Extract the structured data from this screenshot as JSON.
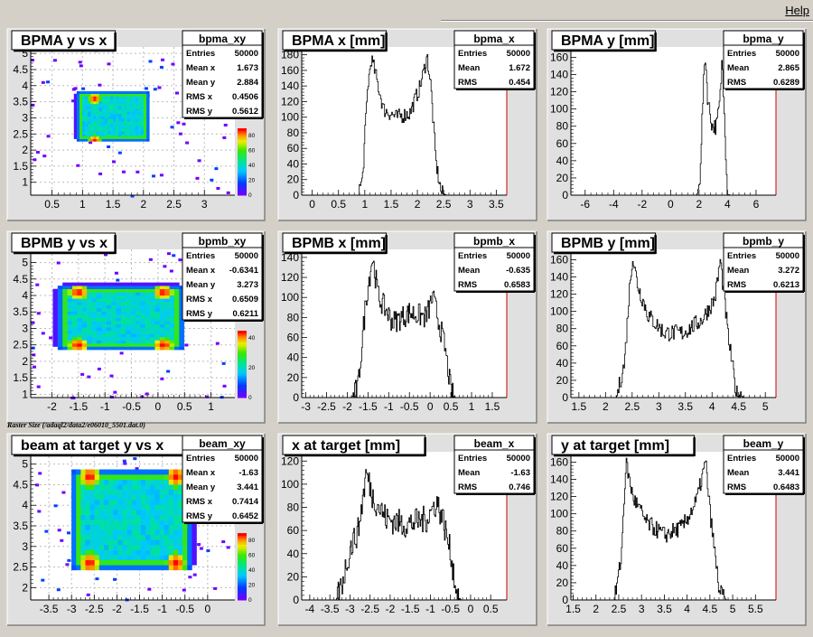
{
  "menu": {
    "help": "Help"
  },
  "caption": "Raster Size (/adaql2/data2/e06010_5501.dat.0)",
  "colors": {
    "pad_bg": "#ffffff",
    "frame_bg": "#e0e0e0",
    "axis_red": "#cc0000"
  },
  "chart_data": [
    {
      "type": "heatmap",
      "title": "BPMA y vs x",
      "stats": {
        "name": "bpma_xy",
        "rows": [
          [
            "Entries",
            "50000"
          ],
          [
            "Mean x",
            "1.673"
          ],
          [
            "Mean y",
            "2.884"
          ],
          [
            "RMS x",
            "0.4506"
          ],
          [
            "RMS y",
            "0.5612"
          ]
        ]
      },
      "xlim": [
        0.15,
        3.5
      ],
      "ylim": [
        0.6,
        5.2
      ],
      "xticks": [
        0.5,
        1,
        1.5,
        2,
        2.5,
        3
      ],
      "xticklabels": [
        "0.5",
        "1",
        "1.5",
        "2",
        "2.5",
        "3"
      ],
      "yticks": [
        1,
        1.5,
        2,
        2.5,
        3,
        3.5,
        4,
        4.5,
        5
      ],
      "yticklabels": [
        "1",
        "1.5",
        "2",
        "2.5",
        "3",
        "3.5",
        "4",
        "4.5",
        "5"
      ],
      "zticks": [
        0,
        20,
        40,
        60,
        80
      ],
      "zticklabels": [
        "0",
        "20",
        "40",
        "60",
        "80"
      ],
      "rect": [
        0.95,
        2.35,
        2.05,
        3.75
      ],
      "hot": [
        [
          1.2,
          2.3
        ],
        [
          2.2,
          2.3
        ],
        [
          1.2,
          3.6
        ],
        [
          2.2,
          3.6
        ]
      ]
    },
    {
      "type": "line",
      "title": "BPMA x [mm]",
      "stats": {
        "name": "bpma_x",
        "rows": [
          [
            "Entries",
            "50000"
          ],
          [
            "Mean",
            "1.672"
          ],
          [
            "RMS",
            "0.454"
          ]
        ]
      },
      "xlim": [
        -0.2,
        3.7
      ],
      "ylim": [
        0,
        190
      ],
      "xticks": [
        0,
        0.5,
        1,
        1.5,
        2,
        2.5,
        3,
        3.5
      ],
      "xticklabels": [
        "0",
        "0.5",
        "1",
        "1.5",
        "2",
        "2.5",
        "3",
        "3.5"
      ],
      "yticks": [
        0,
        20,
        40,
        60,
        80,
        100,
        120,
        140,
        160,
        180
      ],
      "yticklabels": [
        "0",
        "20",
        "40",
        "60",
        "80",
        "100",
        "120",
        "140",
        "160",
        "180"
      ],
      "profile": [
        [
          -0.2,
          0
        ],
        [
          0.85,
          0
        ],
        [
          0.95,
          20
        ],
        [
          1.05,
          140
        ],
        [
          1.12,
          175
        ],
        [
          1.2,
          155
        ],
        [
          1.35,
          110
        ],
        [
          1.6,
          100
        ],
        [
          1.85,
          105
        ],
        [
          2.05,
          140
        ],
        [
          2.18,
          178
        ],
        [
          2.25,
          140
        ],
        [
          2.35,
          40
        ],
        [
          2.45,
          3
        ],
        [
          2.55,
          0
        ],
        [
          3.7,
          0
        ]
      ],
      "noise": 10
    },
    {
      "type": "line",
      "title": "BPMA y [mm]",
      "stats": {
        "name": "bpma_y",
        "rows": [
          [
            "Entries",
            "50000"
          ],
          [
            "Mean",
            "2.865"
          ],
          [
            "RMS",
            "0.6289"
          ]
        ]
      },
      "xlim": [
        -7,
        7.4
      ],
      "ylim": [
        0,
        172
      ],
      "xticks": [
        -6,
        -4,
        -2,
        0,
        2,
        4,
        6
      ],
      "xticklabels": [
        "-6",
        "-4",
        "-2",
        "0",
        "2",
        "4",
        "6"
      ],
      "yticks": [
        0,
        20,
        40,
        60,
        80,
        100,
        120,
        140,
        160
      ],
      "yticklabels": [
        "0",
        "20",
        "40",
        "60",
        "80",
        "100",
        "120",
        "140",
        "160"
      ],
      "profile": [
        [
          -7,
          0
        ],
        [
          1.8,
          0
        ],
        [
          2.0,
          10
        ],
        [
          2.25,
          110
        ],
        [
          2.4,
          165
        ],
        [
          2.6,
          110
        ],
        [
          2.9,
          80
        ],
        [
          3.2,
          80
        ],
        [
          3.45,
          110
        ],
        [
          3.6,
          160
        ],
        [
          3.75,
          100
        ],
        [
          3.95,
          5
        ],
        [
          4.1,
          0
        ],
        [
          7.4,
          0
        ]
      ],
      "noise": 10
    },
    {
      "type": "heatmap",
      "title": "BPMB y vs x",
      "stats": {
        "name": "bpmb_xy",
        "rows": [
          [
            "Entries",
            "50000"
          ],
          [
            "Mean x",
            "-0.6341"
          ],
          [
            "Mean y",
            "3.273"
          ],
          [
            "RMS x",
            "0.6509"
          ],
          [
            "RMS y",
            "0.6211"
          ]
        ]
      },
      "xlim": [
        -2.4,
        1.45
      ],
      "ylim": [
        0.9,
        5.4
      ],
      "xticks": [
        -2,
        -1.5,
        -1,
        -0.5,
        0,
        0.5,
        1
      ],
      "xticklabels": [
        "-2",
        "-1.5",
        "-1",
        "-0.5",
        "0",
        "0.5",
        "1"
      ],
      "yticks": [
        1,
        1.5,
        2,
        2.5,
        3,
        3.5,
        4,
        4.5,
        5
      ],
      "yticklabels": [
        "1",
        "1.5",
        "2",
        "2.5",
        "3",
        "3.5",
        "4",
        "4.5",
        "5"
      ],
      "zticks": [
        0,
        20,
        40
      ],
      "zticklabels": [
        "0",
        "20",
        "40"
      ],
      "rect": [
        -1.8,
        2.45,
        0.4,
        4.2
      ],
      "hot": [
        [
          -1.5,
          2.5
        ],
        [
          0.1,
          2.5
        ],
        [
          -1.5,
          4.1
        ],
        [
          0.1,
          4.1
        ]
      ]
    },
    {
      "type": "line",
      "title": "BPMB x [mm]",
      "stats": {
        "name": "bpmb_x",
        "rows": [
          [
            "Entries",
            "50000"
          ],
          [
            "Mean",
            "-0.635"
          ],
          [
            "RMS",
            "0.6583"
          ]
        ]
      },
      "xlim": [
        -3.1,
        1.85
      ],
      "ylim": [
        0,
        148
      ],
      "xticks": [
        -3,
        -2.5,
        -2,
        -1.5,
        -1,
        -0.5,
        0,
        0.5,
        1,
        1.5
      ],
      "xticklabels": [
        "-3",
        "-2.5",
        "-2",
        "-1.5",
        "-1",
        "-0.5",
        "0",
        "0.5",
        "1",
        "1.5"
      ],
      "yticks": [
        0,
        20,
        40,
        60,
        80,
        100,
        120,
        140
      ],
      "yticklabels": [
        "0",
        "20",
        "40",
        "60",
        "80",
        "100",
        "120",
        "140"
      ],
      "profile": [
        [
          -3.1,
          0
        ],
        [
          -1.9,
          0
        ],
        [
          -1.75,
          10
        ],
        [
          -1.55,
          100
        ],
        [
          -1.4,
          140
        ],
        [
          -1.25,
          100
        ],
        [
          -0.9,
          75
        ],
        [
          -0.5,
          85
        ],
        [
          -0.1,
          80
        ],
        [
          0.05,
          100
        ],
        [
          0.15,
          85
        ],
        [
          0.35,
          50
        ],
        [
          0.5,
          5
        ],
        [
          0.6,
          0
        ],
        [
          1.85,
          0
        ]
      ],
      "noise": 12
    },
    {
      "type": "line",
      "title": "BPMB y [mm]",
      "stats": {
        "name": "bpmb_y",
        "rows": [
          [
            "Entries",
            "50000"
          ],
          [
            "Mean",
            "3.272"
          ],
          [
            "RMS",
            "0.6213"
          ]
        ]
      },
      "xlim": [
        1.35,
        5.2
      ],
      "ylim": [
        0,
        172
      ],
      "xticks": [
        1.5,
        2,
        2.5,
        3,
        3.5,
        4,
        4.5,
        5
      ],
      "xticklabels": [
        "1.5",
        "2",
        "2.5",
        "3",
        "3.5",
        "4",
        "4.5",
        "5"
      ],
      "yticks": [
        0,
        20,
        40,
        60,
        80,
        100,
        120,
        140,
        160
      ],
      "yticklabels": [
        "0",
        "20",
        "40",
        "60",
        "80",
        "100",
        "120",
        "140",
        "160"
      ],
      "profile": [
        [
          1.35,
          0
        ],
        [
          2.2,
          0
        ],
        [
          2.35,
          40
        ],
        [
          2.45,
          130
        ],
        [
          2.5,
          165
        ],
        [
          2.6,
          130
        ],
        [
          2.8,
          95
        ],
        [
          3.1,
          75
        ],
        [
          3.45,
          75
        ],
        [
          3.8,
          90
        ],
        [
          4.05,
          115
        ],
        [
          4.15,
          160
        ],
        [
          4.3,
          70
        ],
        [
          4.45,
          5
        ],
        [
          4.6,
          0
        ],
        [
          5.2,
          0
        ]
      ],
      "noise": 10
    },
    {
      "type": "heatmap",
      "title": "beam at target y vs x",
      "stats": {
        "name": "beam_xy",
        "rows": [
          [
            "Entries",
            "50000"
          ],
          [
            "Mean x",
            "-1.63"
          ],
          [
            "Mean y",
            "3.441"
          ],
          [
            "RMS x",
            "0.7414"
          ],
          [
            "RMS y",
            "0.6452"
          ]
        ]
      },
      "xlim": [
        -3.9,
        0.6
      ],
      "ylim": [
        1.7,
        5.3
      ],
      "xticks": [
        -3.5,
        -3,
        -2.5,
        -2,
        -1.5,
        -1,
        -0.5,
        0
      ],
      "xticklabels": [
        "-3.5",
        "-3",
        "-2.5",
        "-2",
        "-1.5",
        "-1",
        "-0.5",
        "0"
      ],
      "yticks": [
        2,
        2.5,
        3,
        3.5,
        4,
        4.5,
        5
      ],
      "yticklabels": [
        "2",
        "2.5",
        "3",
        "3.5",
        "4",
        "4.5",
        "5"
      ],
      "zticks": [
        0,
        20,
        40,
        60,
        80
      ],
      "zticklabels": [
        "0",
        "20",
        "40",
        "60",
        "80"
      ],
      "rect": [
        -2.9,
        2.55,
        -0.45,
        4.75
      ],
      "hot": [
        [
          -2.6,
          2.6
        ],
        [
          -0.7,
          2.6
        ],
        [
          -2.6,
          4.7
        ],
        [
          -0.7,
          4.7
        ]
      ]
    },
    {
      "type": "line",
      "title": "x at target [mm]",
      "stats": {
        "name": "beam_x",
        "rows": [
          [
            "Entries",
            "50000"
          ],
          [
            "Mean",
            "-1.63"
          ],
          [
            "RMS",
            "0.746"
          ]
        ]
      },
      "xlim": [
        -4.2,
        0.9
      ],
      "ylim": [
        0,
        128
      ],
      "xticks": [
        -4,
        -3.5,
        -3,
        -2.5,
        -2,
        -1.5,
        -1,
        -0.5,
        0,
        0.5
      ],
      "xticklabels": [
        "-4",
        "-3.5",
        "-3",
        "-2.5",
        "-2",
        "-1.5",
        "-1",
        "-0.5",
        "0",
        "0.5"
      ],
      "yticks": [
        0,
        20,
        40,
        60,
        80,
        100,
        120
      ],
      "yticklabels": [
        "0",
        "20",
        "40",
        "60",
        "80",
        "100",
        "120"
      ],
      "profile": [
        [
          -4.2,
          0
        ],
        [
          -3.35,
          0
        ],
        [
          -3.2,
          15
        ],
        [
          -3.0,
          45
        ],
        [
          -2.8,
          60
        ],
        [
          -2.6,
          110
        ],
        [
          -2.45,
          90
        ],
        [
          -2.1,
          70
        ],
        [
          -1.6,
          65
        ],
        [
          -1.1,
          70
        ],
        [
          -0.85,
          85
        ],
        [
          -0.7,
          70
        ],
        [
          -0.5,
          40
        ],
        [
          -0.35,
          5
        ],
        [
          -0.25,
          0
        ],
        [
          0.9,
          0
        ]
      ],
      "noise": 12
    },
    {
      "type": "line",
      "title": "y at target [mm]",
      "stats": {
        "name": "beam_y",
        "rows": [
          [
            "Entries",
            "50000"
          ],
          [
            "Mean",
            "3.441"
          ],
          [
            "RMS",
            "0.6483"
          ]
        ]
      },
      "xlim": [
        1.45,
        5.95
      ],
      "ylim": [
        0,
        172
      ],
      "xticks": [
        1.5,
        2,
        2.5,
        3,
        3.5,
        4,
        4.5,
        5,
        5.5
      ],
      "xticklabels": [
        "1.5",
        "2",
        "2.5",
        "3",
        "3.5",
        "4",
        "4.5",
        "5",
        "5.5"
      ],
      "yticks": [
        0,
        20,
        40,
        60,
        80,
        100,
        120,
        140,
        160
      ],
      "yticklabels": [
        "0",
        "20",
        "40",
        "60",
        "80",
        "100",
        "120",
        "140",
        "160"
      ],
      "profile": [
        [
          1.45,
          0
        ],
        [
          2.4,
          0
        ],
        [
          2.55,
          50
        ],
        [
          2.65,
          160
        ],
        [
          2.8,
          120
        ],
        [
          3.1,
          90
        ],
        [
          3.5,
          75
        ],
        [
          3.9,
          85
        ],
        [
          4.2,
          115
        ],
        [
          4.4,
          160
        ],
        [
          4.5,
          100
        ],
        [
          4.7,
          10
        ],
        [
          4.85,
          0
        ],
        [
          5.95,
          0
        ]
      ],
      "noise": 10
    }
  ]
}
